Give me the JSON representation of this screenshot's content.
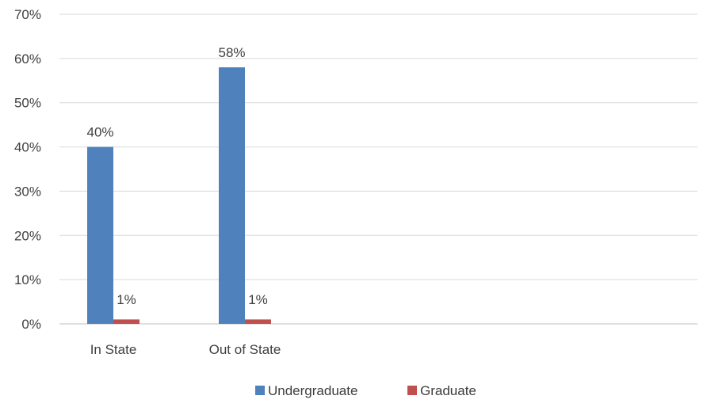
{
  "chart_data": {
    "type": "bar",
    "categories": [
      "In State",
      "Out of State"
    ],
    "series": [
      {
        "name": "Undergraduate",
        "values": [
          40,
          58
        ],
        "color": "#4F81BD",
        "labels": [
          "40%",
          "58%"
        ]
      },
      {
        "name": "Graduate",
        "values": [
          1,
          1
        ],
        "color": "#C0504D",
        "labels": [
          "1%",
          "1%"
        ]
      }
    ],
    "ylim": [
      0,
      70
    ],
    "yticks": [
      0,
      10,
      20,
      30,
      40,
      50,
      60,
      70
    ],
    "ytick_labels": [
      "0%",
      "10%",
      "20%",
      "30%",
      "40%",
      "50%",
      "60%",
      "70%"
    ],
    "grid": true,
    "legend_position": "bottom"
  }
}
